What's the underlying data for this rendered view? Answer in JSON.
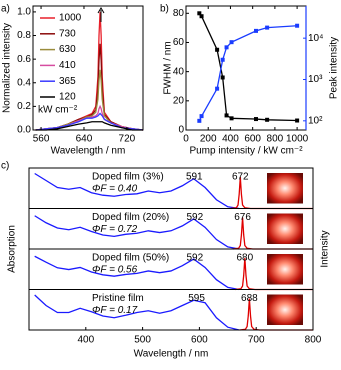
{
  "chart_data": [
    {
      "type": "line",
      "panel_label": "a)",
      "xlabel": "Wavelength / nm",
      "ylabel": "Normalized intensity",
      "xlim": [
        545,
        750
      ],
      "xticks": [
        560,
        640,
        720
      ],
      "ylim": [
        0,
        1.05
      ],
      "yticks": [
        {
          "value": 0,
          "label": "0.0"
        },
        {
          "value": 0.2,
          "label": "0.2"
        },
        {
          "value": 0.4,
          "label": "0.4"
        },
        {
          "value": 0.6,
          "label": "0.6"
        },
        {
          "value": 0.8,
          "label": "0.8"
        },
        {
          "value": 1,
          "label": "1.0"
        }
      ],
      "legend_note": "kW cm⁻²",
      "x": [
        550,
        570,
        590,
        610,
        630,
        645,
        655,
        662,
        666,
        668,
        670,
        672,
        674,
        678,
        690,
        710,
        730,
        750
      ],
      "series": [
        {
          "name": "1000",
          "color": "#e8202a",
          "values": [
            0,
            0.01,
            0.02,
            0.05,
            0.09,
            0.12,
            0.14,
            0.2,
            0.45,
            0.8,
            1.0,
            0.8,
            0.45,
            0.15,
            0.07,
            0.03,
            0.01,
            0
          ]
        },
        {
          "name": "730",
          "color": "#8b0a0a",
          "values": [
            0,
            0.01,
            0.02,
            0.05,
            0.09,
            0.11,
            0.13,
            0.17,
            0.34,
            0.59,
            0.73,
            0.59,
            0.34,
            0.13,
            0.07,
            0.03,
            0.01,
            0
          ]
        },
        {
          "name": "630",
          "color": "#9a8c3c",
          "values": [
            0,
            0.01,
            0.02,
            0.05,
            0.08,
            0.11,
            0.12,
            0.15,
            0.26,
            0.42,
            0.51,
            0.42,
            0.26,
            0.12,
            0.06,
            0.03,
            0.01,
            0
          ]
        },
        {
          "name": "410",
          "color": "#d64ca0",
          "values": [
            0,
            0.01,
            0.02,
            0.04,
            0.08,
            0.1,
            0.11,
            0.12,
            0.14,
            0.18,
            0.2,
            0.18,
            0.14,
            0.09,
            0.06,
            0.03,
            0.01,
            0
          ]
        },
        {
          "name": "365",
          "color": "#3a3aff",
          "values": [
            0,
            0.01,
            0.02,
            0.04,
            0.07,
            0.1,
            0.1,
            0.11,
            0.12,
            0.13,
            0.14,
            0.13,
            0.12,
            0.09,
            0.06,
            0.02,
            0.01,
            0
          ]
        },
        {
          "name": "120",
          "color": "#000000",
          "values": [
            0,
            0,
            0.01,
            0.03,
            0.05,
            0.06,
            0.07,
            0.07,
            0.07,
            0.07,
            0.07,
            0.07,
            0.07,
            0.06,
            0.04,
            0.02,
            0,
            0
          ]
        }
      ]
    },
    {
      "type": "dual-axis-line",
      "panel_label": "b)",
      "xlabel": "Pump intensity / kW cm⁻²",
      "ylabel": "FWHM / nm",
      "y2label": "Peak intensity",
      "xlim": [
        0,
        1080
      ],
      "xticks": [
        0,
        200,
        400,
        600,
        800,
        1000
      ],
      "ylim": [
        0,
        85
      ],
      "yticks": [
        0,
        20,
        40,
        60,
        80
      ],
      "y2scale": "log",
      "y2lim": [
        60,
        60000
      ],
      "y2ticks": [
        {
          "value": 100,
          "label": "10²"
        },
        {
          "value": 1000,
          "label": "10³"
        },
        {
          "value": 10000,
          "label": "10⁴"
        }
      ],
      "x": [
        120,
        140,
        280,
        330,
        365,
        410,
        630,
        730,
        1000
      ],
      "series": [
        {
          "color": "#000000",
          "values": [
            80,
            78,
            55,
            36,
            10,
            8,
            7.5,
            7,
            6.5
          ]
        },
        {
          "color": "#1a3cff",
          "axis": "y2",
          "values": [
            100,
            130,
            600,
            3000,
            6000,
            8000,
            15000,
            18000,
            20000
          ]
        }
      ]
    },
    {
      "type": "stacked-spectra",
      "panel_label": "c)",
      "xlabel": "Wavelength / nm",
      "ylabel": "Absorption",
      "y2label": "Intensity",
      "xlim": [
        300,
        800
      ],
      "xticks": [
        400,
        500,
        600,
        700,
        800
      ],
      "ylim": [
        0,
        1.1
      ],
      "absorption_color": "#1a1aff",
      "emission_color": "#e00000",
      "absorption_x": [
        310,
        330,
        350,
        370,
        390,
        410,
        430,
        450,
        470,
        490,
        510,
        530,
        550,
        570,
        590,
        610,
        630,
        650,
        670
      ],
      "panels": [
        {
          "name": "Doped film (3%)",
          "yield_label": "ΦF = 0.40",
          "absorption_peak": 591,
          "emission_peak": 672,
          "absorption": [
            1.0,
            0.8,
            0.6,
            0.55,
            0.6,
            0.45,
            0.38,
            0.35,
            0.4,
            0.42,
            0.5,
            0.45,
            0.5,
            0.65,
            0.85,
            0.6,
            0.25,
            0.05,
            0
          ],
          "emission_x": [
            655,
            665,
            668,
            670,
            672,
            674,
            676,
            680,
            690,
            800
          ],
          "emission": [
            0,
            0.02,
            0.1,
            0.4,
            0.9,
            0.4,
            0.1,
            0.02,
            0,
            0
          ]
        },
        {
          "name": "Doped film (20%)",
          "yield_label": "ΦF = 0.72",
          "absorption_peak": 592,
          "emission_peak": 676,
          "absorption": [
            0.95,
            0.75,
            0.6,
            0.55,
            0.62,
            0.5,
            0.4,
            0.36,
            0.42,
            0.45,
            0.52,
            0.47,
            0.52,
            0.66,
            0.86,
            0.62,
            0.27,
            0.06,
            0
          ],
          "emission_x": [
            659,
            669,
            672,
            674,
            676,
            678,
            680,
            684,
            694,
            800
          ],
          "emission": [
            0,
            0.02,
            0.1,
            0.4,
            0.9,
            0.4,
            0.1,
            0.02,
            0,
            0
          ]
        },
        {
          "name": "Doped film (50%)",
          "yield_label": "ΦF = 0.56",
          "absorption_peak": 592,
          "emission_peak": 680,
          "absorption": [
            0.95,
            0.78,
            0.62,
            0.57,
            0.63,
            0.5,
            0.42,
            0.38,
            0.43,
            0.46,
            0.53,
            0.48,
            0.53,
            0.68,
            0.87,
            0.63,
            0.28,
            0.06,
            0
          ],
          "emission_x": [
            663,
            673,
            676,
            678,
            680,
            682,
            684,
            688,
            698,
            800
          ],
          "emission": [
            0,
            0.02,
            0.1,
            0.4,
            0.9,
            0.4,
            0.1,
            0.02,
            0,
            0
          ]
        },
        {
          "name": "Pristine film",
          "yield_label": "ΦF = 0.17",
          "absorption_peak": 595,
          "emission_peak": 688,
          "absorption": [
            1.0,
            0.7,
            0.5,
            0.5,
            0.62,
            0.52,
            0.4,
            0.35,
            0.42,
            0.5,
            0.55,
            0.48,
            0.55,
            0.7,
            0.85,
            0.78,
            0.35,
            0.08,
            0
          ],
          "emission_x": [
            671,
            681,
            684,
            686,
            688,
            690,
            692,
            696,
            706,
            800
          ],
          "emission": [
            0,
            0.02,
            0.1,
            0.4,
            0.9,
            0.4,
            0.1,
            0.02,
            0,
            0
          ]
        }
      ]
    }
  ]
}
